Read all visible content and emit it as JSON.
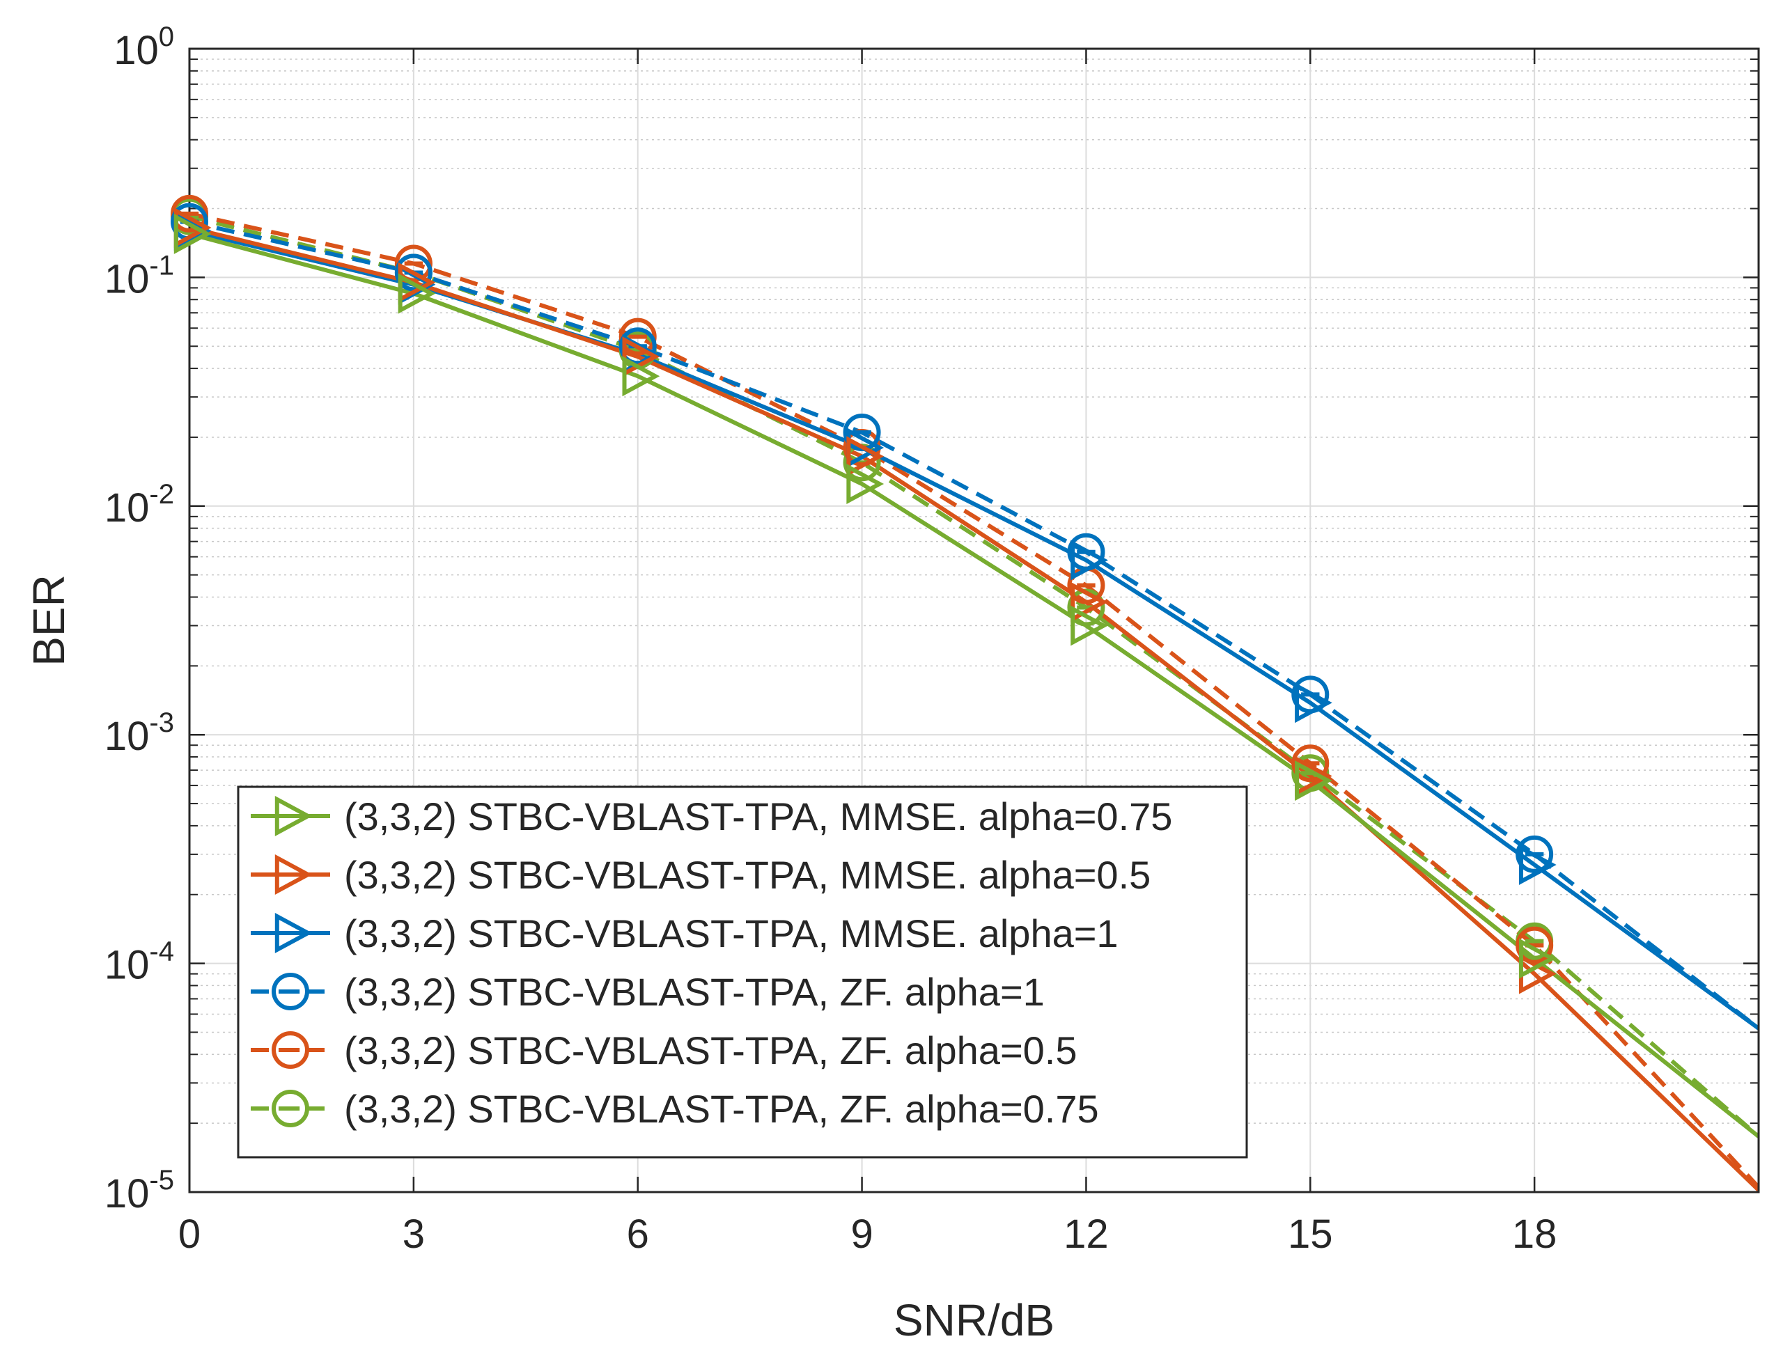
{
  "chart_data": {
    "type": "line",
    "title": "",
    "xlabel": "SNR/dB",
    "ylabel": "BER",
    "xscale": "linear",
    "yscale": "log",
    "xlim": [
      0,
      21
    ],
    "ylim": [
      1e-05,
      1
    ],
    "grid": true,
    "minor_grid": true,
    "legend_position": "lower-left",
    "x_ticks": [
      {
        "value": 0,
        "label": "0"
      },
      {
        "value": 3,
        "label": "3"
      },
      {
        "value": 6,
        "label": "6"
      },
      {
        "value": 9,
        "label": "9"
      },
      {
        "value": 12,
        "label": "12"
      },
      {
        "value": 15,
        "label": "15"
      },
      {
        "value": 18,
        "label": "18"
      }
    ],
    "y_ticks": [
      {
        "value": 1e-05,
        "base": "10",
        "exp": "-5"
      },
      {
        "value": 0.0001,
        "base": "10",
        "exp": "-4"
      },
      {
        "value": 0.001,
        "base": "10",
        "exp": "-3"
      },
      {
        "value": 0.01,
        "base": "10",
        "exp": "-2"
      },
      {
        "value": 0.1,
        "base": "10",
        "exp": "-1"
      },
      {
        "value": 1,
        "base": "10",
        "exp": "0"
      }
    ],
    "series": [
      {
        "name": "(3,3,2) STBC-VBLAST-TPA, MMSE. alpha=0.75",
        "color": "#77AC30",
        "line_style": "solid",
        "marker": "triangle-right",
        "x": [
          0,
          3,
          6,
          9,
          12,
          15,
          18,
          21
        ],
        "y": [
          0.155,
          0.085,
          0.037,
          0.0125,
          0.003,
          0.00063,
          0.000105,
          1.75e-05
        ]
      },
      {
        "name": "(3,3,2) STBC-VBLAST-TPA, MMSE. alpha=0.5",
        "color": "#D95319",
        "line_style": "solid",
        "marker": "triangle-right",
        "x": [
          0,
          3,
          6,
          9,
          12,
          15,
          18,
          21
        ],
        "y": [
          0.165,
          0.095,
          0.045,
          0.0165,
          0.0038,
          0.00066,
          9e-05,
          1.02e-05
        ]
      },
      {
        "name": "(3,3,2) STBC-VBLAST-TPA, MMSE. alpha=1",
        "color": "#0072BD",
        "line_style": "solid",
        "marker": "triangle-right",
        "x": [
          0,
          3,
          6,
          9,
          12,
          15,
          18,
          21
        ],
        "y": [
          0.16,
          0.093,
          0.046,
          0.018,
          0.0058,
          0.00138,
          0.00027,
          5.2e-05
        ]
      },
      {
        "name": "(3,3,2) STBC-VBLAST-TPA, ZF. alpha=1",
        "color": "#0072BD",
        "line_style": "dashed",
        "marker": "circle-dash",
        "x": [
          0,
          3,
          6,
          9,
          12,
          15,
          18,
          21
        ],
        "y": [
          0.175,
          0.105,
          0.05,
          0.021,
          0.0063,
          0.0015,
          0.0003,
          5.2e-05
        ]
      },
      {
        "name": "(3,3,2) STBC-VBLAST-TPA, ZF. alpha=0.5",
        "color": "#D95319",
        "line_style": "dashed",
        "marker": "circle-dash",
        "x": [
          0,
          3,
          6,
          9,
          12,
          15,
          18,
          21
        ],
        "y": [
          0.19,
          0.115,
          0.055,
          0.018,
          0.0045,
          0.00075,
          0.00012,
          1.05e-05
        ]
      },
      {
        "name": "(3,3,2) STBC-VBLAST-TPA, ZF. alpha=0.75",
        "color": "#77AC30",
        "line_style": "dashed",
        "marker": "circle-dash",
        "x": [
          0,
          3,
          6,
          9,
          12,
          15,
          18,
          21
        ],
        "y": [
          0.185,
          0.105,
          0.048,
          0.0155,
          0.0036,
          0.00068,
          0.000125,
          1.75e-05
        ]
      }
    ]
  }
}
